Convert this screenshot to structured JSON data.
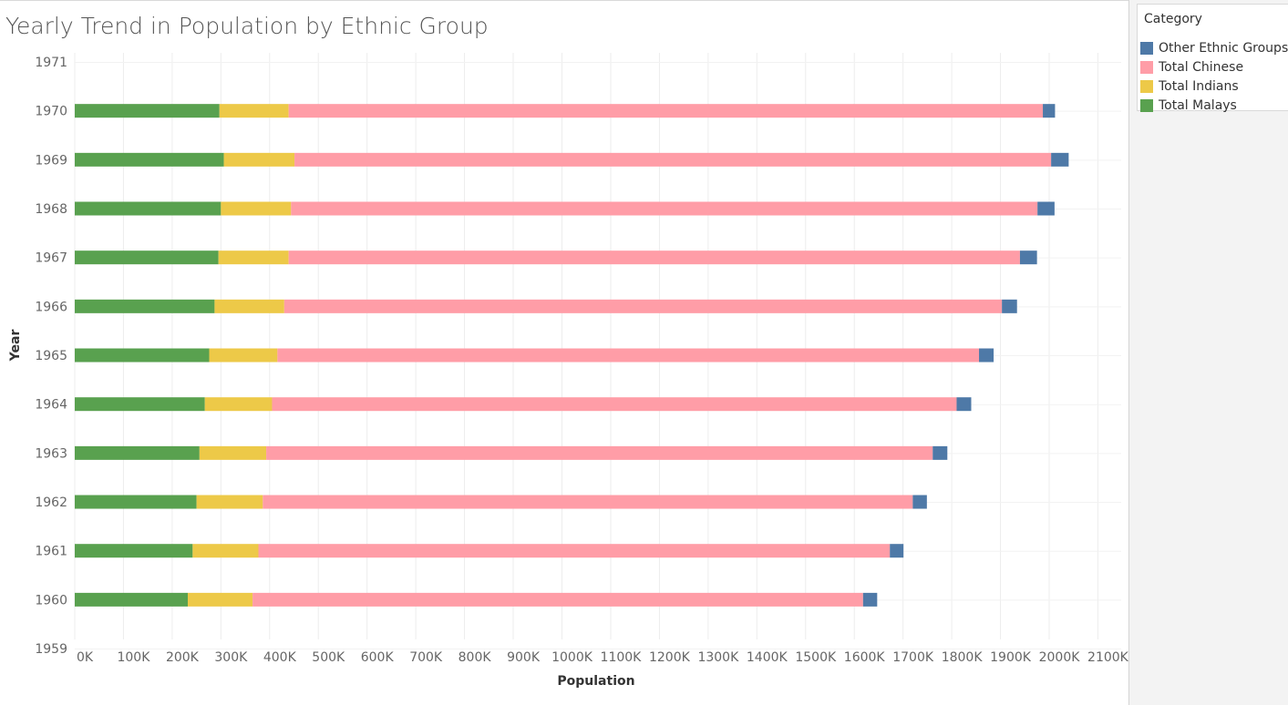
{
  "chart_data": {
    "type": "bar",
    "orientation": "horizontal",
    "stacked": true,
    "title": "Yearly Trend in Population by Ethnic Group",
    "xlabel": "Population",
    "ylabel": "Year",
    "xlim": [
      0,
      2100000
    ],
    "x_ticks": [
      "0K",
      "100K",
      "200K",
      "300K",
      "400K",
      "500K",
      "600K",
      "700K",
      "800K",
      "900K",
      "1000K",
      "1100K",
      "1200K",
      "1300K",
      "1400K",
      "1500K",
      "1600K",
      "1700K",
      "1800K",
      "1900K",
      "2000K",
      "2100K"
    ],
    "y_ticks": [
      "1971",
      "1970",
      "1969",
      "1968",
      "1967",
      "1966",
      "1965",
      "1964",
      "1963",
      "1962",
      "1961",
      "1960",
      "1959"
    ],
    "categories": [
      "1970",
      "1969",
      "1968",
      "1967",
      "1966",
      "1965",
      "1964",
      "1963",
      "1962",
      "1961",
      "1960"
    ],
    "grid": true,
    "legend_position": "right",
    "series": [
      {
        "name": "Total Malays",
        "color": "#59a14f",
        "values": [
          297000,
          306000,
          300000,
          295000,
          287000,
          276000,
          267000,
          256000,
          250000,
          242000,
          232000
        ]
      },
      {
        "name": "Total Indians",
        "color": "#edc948",
        "values": [
          142000,
          145000,
          144000,
          144000,
          143000,
          140000,
          138000,
          137000,
          136000,
          135000,
          133000
        ]
      },
      {
        "name": "Total Chinese",
        "color": "#ff9da7",
        "values": [
          1548000,
          1553000,
          1532000,
          1501000,
          1473000,
          1440000,
          1405000,
          1368000,
          1334000,
          1296000,
          1253000
        ]
      },
      {
        "name": "Other Ethnic Groups",
        "color": "#4e79a7",
        "values": [
          25000,
          36000,
          35000,
          35000,
          31000,
          30000,
          30000,
          30000,
          29000,
          28000,
          29000
        ]
      }
    ]
  },
  "legend": {
    "title": "Category",
    "items": [
      {
        "label": "Other Ethnic Groups",
        "color": "#4e79a7"
      },
      {
        "label": "Total Chinese",
        "color": "#ff9da7"
      },
      {
        "label": "Total Indians",
        "color": "#edc948"
      },
      {
        "label": "Total Malays",
        "color": "#59a14f"
      }
    ]
  }
}
